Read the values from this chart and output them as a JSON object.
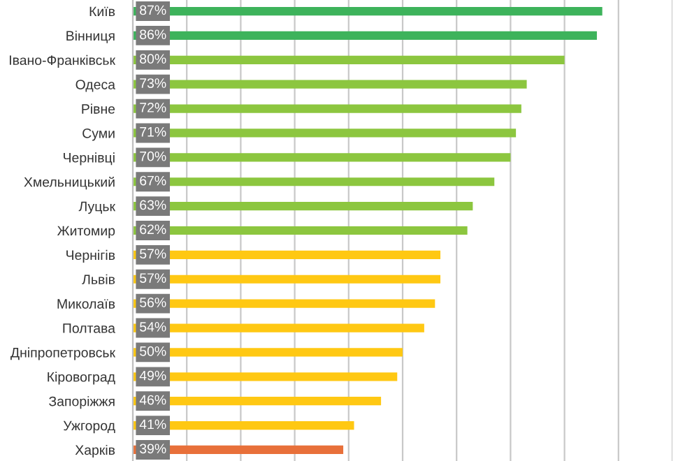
{
  "chart_data": {
    "type": "bar",
    "orientation": "horizontal",
    "categories": [
      "Київ",
      "Вінниця",
      "Івано-Франківськ",
      "Одеса",
      "Рівне",
      "Суми",
      "Чернівці",
      "Хмельницький",
      "Луцьк",
      "Житомир",
      "Чернігів",
      "Львів",
      "Миколаїв",
      "Полтава",
      "Дніпропетровськ",
      "Кіровоград",
      "Запоріжжя",
      "Ужгород",
      "Харків"
    ],
    "values": [
      87,
      86,
      80,
      73,
      72,
      71,
      70,
      67,
      63,
      62,
      57,
      57,
      56,
      54,
      50,
      49,
      46,
      41,
      39
    ],
    "value_labels": [
      "87%",
      "86%",
      "80%",
      "73%",
      "72%",
      "71%",
      "70%",
      "67%",
      "63%",
      "62%",
      "57%",
      "57%",
      "56%",
      "54%",
      "50%",
      "49%",
      "46%",
      "41%",
      "39%"
    ],
    "colors": [
      "#3db35b",
      "#3db35b",
      "#8cc63f",
      "#8cc63f",
      "#8cc63f",
      "#8cc63f",
      "#8cc63f",
      "#8cc63f",
      "#8cc63f",
      "#8cc63f",
      "#ffc813",
      "#ffc813",
      "#ffc813",
      "#ffc813",
      "#ffc813",
      "#ffc813",
      "#ffc813",
      "#ffc813",
      "#e8703a"
    ],
    "xlim": [
      0,
      100
    ],
    "xticks": [
      {
        "value": 0,
        "label": null
      },
      {
        "value": 10,
        "label": null
      },
      {
        "value": 20,
        "label": null
      },
      {
        "value": 30,
        "label": null
      },
      {
        "value": 40,
        "label": null
      },
      {
        "value": 50,
        "label": null
      },
      {
        "value": 60,
        "label": null
      },
      {
        "value": 70,
        "label": null
      },
      {
        "value": 80,
        "label": null
      },
      {
        "value": 90,
        "label": null
      },
      {
        "value": 100,
        "label": null
      }
    ],
    "tick_labels": "y",
    "grid": "x"
  }
}
